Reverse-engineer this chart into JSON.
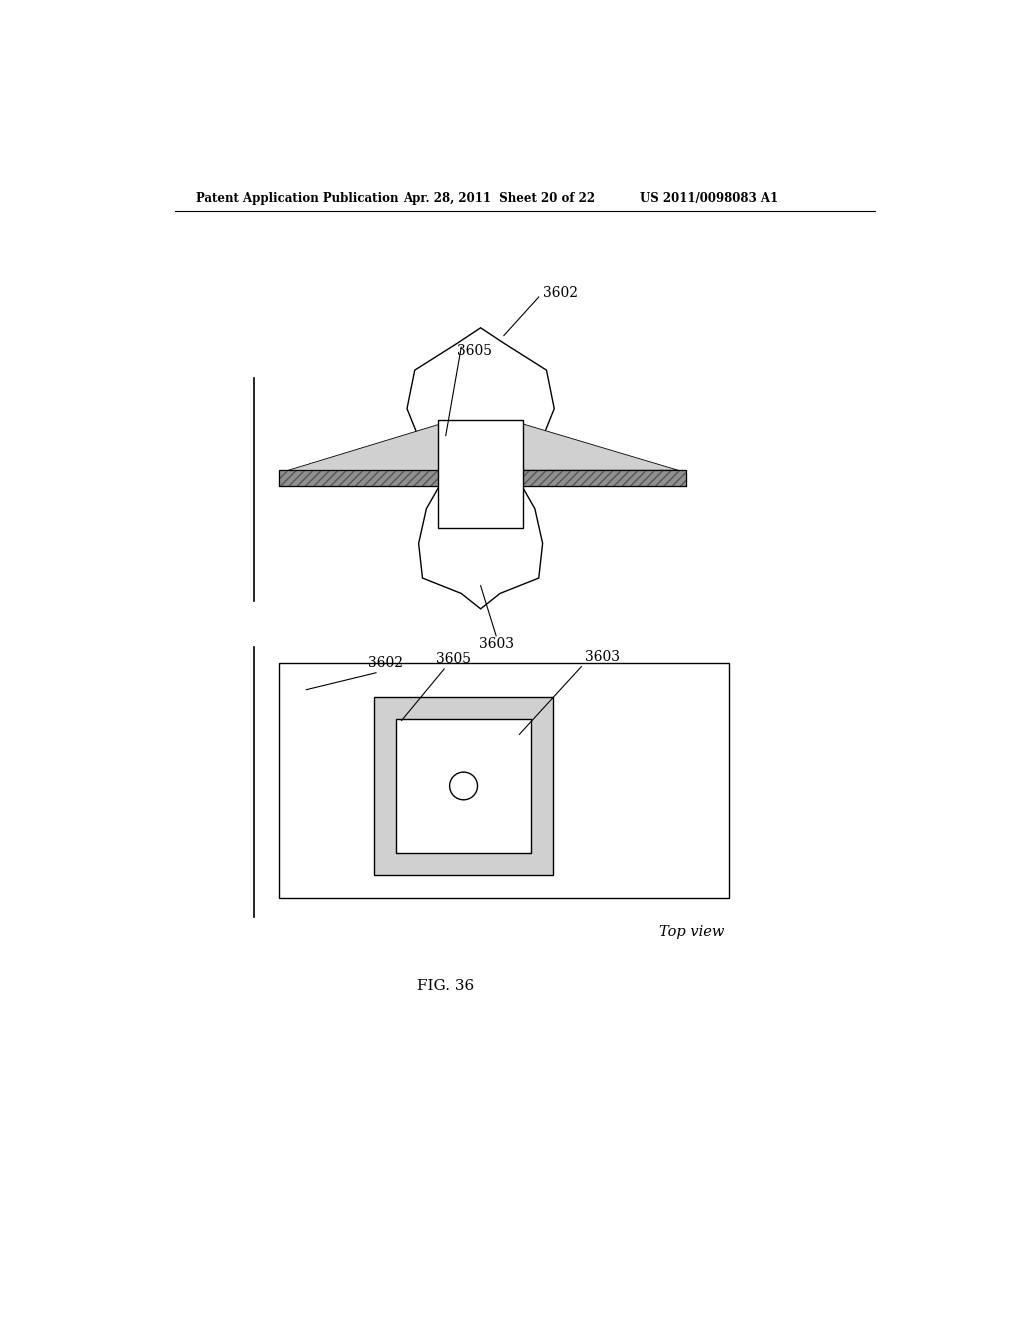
{
  "bg_color": "#ffffff",
  "line_color": "#000000",
  "header_left": "Patent Application Publication",
  "header_mid": "Apr. 28, 2011  Sheet 20 of 22",
  "header_right": "US 2011/0098083 A1",
  "fig_label": "FIG. 36",
  "top_view_label": "Top view",
  "label_3602_top": "3602",
  "label_3605_top": "3605",
  "label_3603_top": "3603",
  "label_3602_bot": "3602",
  "label_3605_bot": "3605",
  "label_3603_bot": "3603",
  "shading_color": "#d0d0d0",
  "dark_bar_color": "#909090",
  "bar_hatch_color": "#555555"
}
